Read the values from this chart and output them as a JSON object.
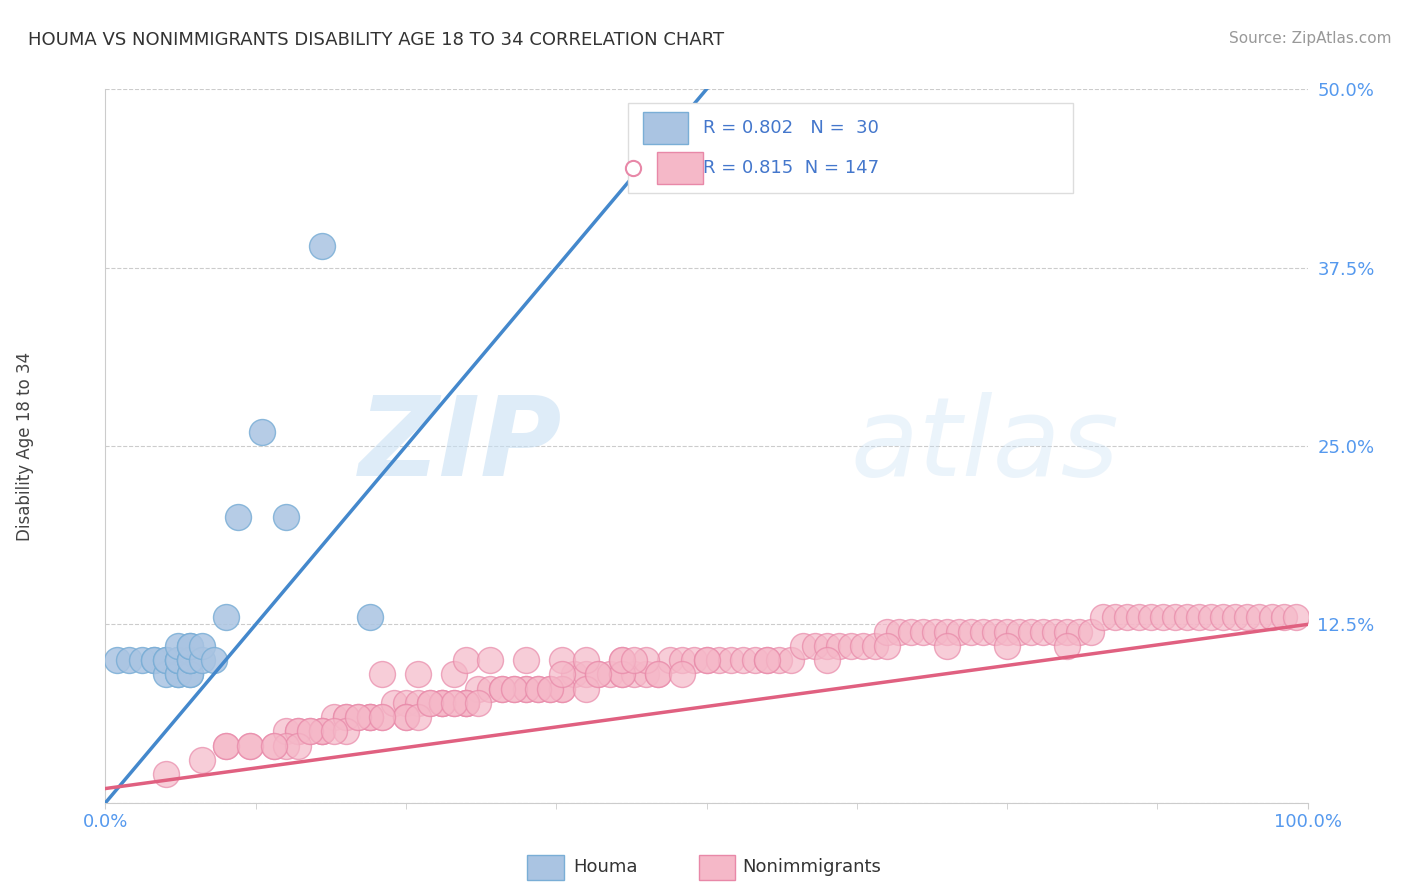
{
  "title": "HOUMA VS NONIMMIGRANTS DISABILITY AGE 18 TO 34 CORRELATION CHART",
  "source_text": "Source: ZipAtlas.com",
  "ylabel": "Disability Age 18 to 34",
  "houma_R": 0.802,
  "houma_N": 30,
  "nonimm_R": 0.815,
  "nonimm_N": 147,
  "houma_color": "#aac4e2",
  "houma_edge_color": "#7aaed6",
  "houma_line_color": "#4488cc",
  "nonimm_color": "#f5b8c8",
  "nonimm_edge_color": "#e888a8",
  "nonimm_line_color": "#e06080",
  "background_color": "#ffffff",
  "watermark_zip": "ZIP",
  "watermark_atlas": "atlas",
  "grid_color": "#cccccc",
  "xlim": [
    0,
    1.0
  ],
  "ylim": [
    0,
    0.5
  ],
  "houma_scatter_x": [
    0.01,
    0.02,
    0.03,
    0.04,
    0.04,
    0.05,
    0.05,
    0.05,
    0.06,
    0.06,
    0.06,
    0.06,
    0.06,
    0.06,
    0.07,
    0.07,
    0.07,
    0.07,
    0.07,
    0.07,
    0.07,
    0.08,
    0.08,
    0.09,
    0.1,
    0.11,
    0.13,
    0.15,
    0.18,
    0.22
  ],
  "houma_scatter_y": [
    0.1,
    0.1,
    0.1,
    0.1,
    0.1,
    0.09,
    0.1,
    0.1,
    0.09,
    0.09,
    0.1,
    0.1,
    0.1,
    0.11,
    0.09,
    0.09,
    0.1,
    0.1,
    0.1,
    0.11,
    0.11,
    0.1,
    0.11,
    0.1,
    0.13,
    0.2,
    0.26,
    0.2,
    0.39,
    0.13
  ],
  "houma_line_x": [
    0.0,
    0.5
  ],
  "houma_line_y": [
    0.0,
    0.5
  ],
  "nonimm_line_x": [
    0.0,
    1.0
  ],
  "nonimm_line_y": [
    0.01,
    0.125
  ],
  "nonimm_scatter_x": [
    0.05,
    0.08,
    0.1,
    0.12,
    0.14,
    0.15,
    0.16,
    0.17,
    0.18,
    0.19,
    0.2,
    0.21,
    0.22,
    0.23,
    0.24,
    0.25,
    0.26,
    0.27,
    0.28,
    0.29,
    0.3,
    0.31,
    0.32,
    0.33,
    0.34,
    0.35,
    0.36,
    0.37,
    0.38,
    0.39,
    0.4,
    0.41,
    0.42,
    0.43,
    0.44,
    0.45,
    0.46,
    0.47,
    0.48,
    0.49,
    0.5,
    0.51,
    0.52,
    0.53,
    0.54,
    0.55,
    0.56,
    0.57,
    0.58,
    0.59,
    0.6,
    0.61,
    0.62,
    0.63,
    0.64,
    0.65,
    0.66,
    0.67,
    0.68,
    0.69,
    0.7,
    0.71,
    0.72,
    0.73,
    0.74,
    0.75,
    0.76,
    0.77,
    0.78,
    0.79,
    0.8,
    0.81,
    0.82,
    0.83,
    0.84,
    0.85,
    0.86,
    0.87,
    0.88,
    0.89,
    0.9,
    0.91,
    0.92,
    0.93,
    0.94,
    0.95,
    0.96,
    0.97,
    0.98,
    0.99,
    0.23,
    0.26,
    0.29,
    0.3,
    0.32,
    0.35,
    0.38,
    0.4,
    0.43,
    0.45,
    0.16,
    0.18,
    0.2,
    0.22,
    0.25,
    0.28,
    0.3,
    0.35,
    0.38,
    0.4,
    0.43,
    0.46,
    0.48,
    0.5,
    0.55,
    0.6,
    0.65,
    0.7,
    0.75,
    0.8,
    0.15,
    0.16,
    0.18,
    0.2,
    0.22,
    0.25,
    0.28,
    0.3,
    0.1,
    0.12,
    0.14,
    0.17,
    0.19,
    0.21,
    0.23,
    0.26,
    0.27,
    0.29,
    0.31,
    0.33,
    0.34,
    0.36,
    0.37,
    0.38,
    0.41,
    0.43,
    0.44
  ],
  "nonimm_scatter_y": [
    0.02,
    0.03,
    0.04,
    0.04,
    0.04,
    0.05,
    0.05,
    0.05,
    0.05,
    0.06,
    0.06,
    0.06,
    0.06,
    0.06,
    0.07,
    0.07,
    0.07,
    0.07,
    0.07,
    0.07,
    0.07,
    0.08,
    0.08,
    0.08,
    0.08,
    0.08,
    0.08,
    0.08,
    0.08,
    0.09,
    0.09,
    0.09,
    0.09,
    0.09,
    0.09,
    0.09,
    0.09,
    0.1,
    0.1,
    0.1,
    0.1,
    0.1,
    0.1,
    0.1,
    0.1,
    0.1,
    0.1,
    0.1,
    0.11,
    0.11,
    0.11,
    0.11,
    0.11,
    0.11,
    0.11,
    0.12,
    0.12,
    0.12,
    0.12,
    0.12,
    0.12,
    0.12,
    0.12,
    0.12,
    0.12,
    0.12,
    0.12,
    0.12,
    0.12,
    0.12,
    0.12,
    0.12,
    0.12,
    0.13,
    0.13,
    0.13,
    0.13,
    0.13,
    0.13,
    0.13,
    0.13,
    0.13,
    0.13,
    0.13,
    0.13,
    0.13,
    0.13,
    0.13,
    0.13,
    0.13,
    0.09,
    0.09,
    0.09,
    0.1,
    0.1,
    0.1,
    0.1,
    0.1,
    0.1,
    0.1,
    0.05,
    0.05,
    0.06,
    0.06,
    0.06,
    0.07,
    0.07,
    0.08,
    0.08,
    0.08,
    0.09,
    0.09,
    0.09,
    0.1,
    0.1,
    0.1,
    0.11,
    0.11,
    0.11,
    0.11,
    0.04,
    0.04,
    0.05,
    0.05,
    0.06,
    0.06,
    0.07,
    0.07,
    0.04,
    0.04,
    0.04,
    0.05,
    0.05,
    0.06,
    0.06,
    0.06,
    0.07,
    0.07,
    0.07,
    0.08,
    0.08,
    0.08,
    0.08,
    0.09,
    0.09,
    0.1,
    0.1
  ]
}
